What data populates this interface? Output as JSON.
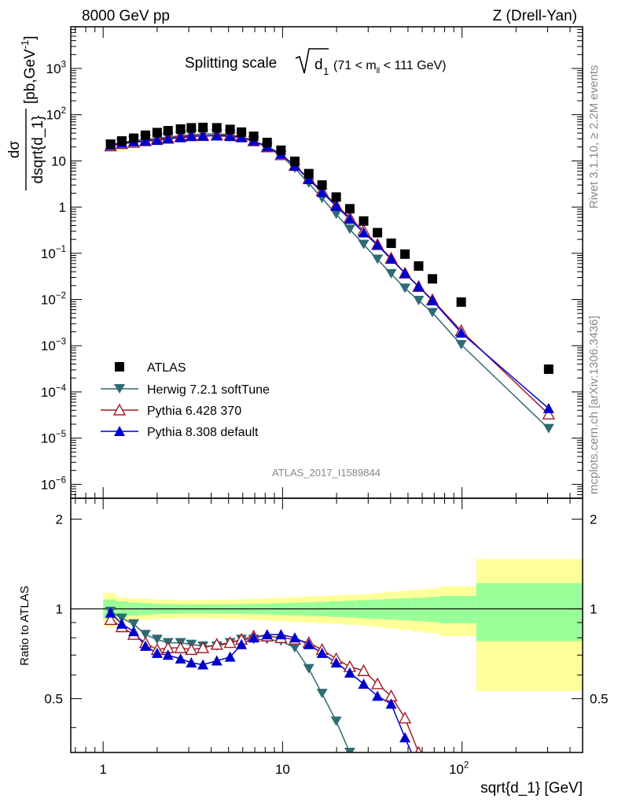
{
  "header": {
    "left": "8000 GeV pp",
    "right": "Z (Drell-Yan)"
  },
  "side_labels": {
    "rivet": "Rivet 3.1.10, ≥ 2.2M events",
    "site": "mcplots.cern.ch [arXiv:1306.3436]"
  },
  "analysis_tag": "ATLAS_2017_I1589844",
  "colors": {
    "atlas": "#000000",
    "herwig": "#2e6b73",
    "pythia6": "#a01c2a",
    "pythia8": "#0000cc",
    "band_inner": "#99ff99",
    "band_outer": "#ffff99"
  },
  "chart_data": [
    {
      "type": "scatter",
      "title_parts": {
        "main": "Splitting scale",
        "symbol": "d",
        "sub": "1",
        "range": "(71 < m",
        "range_sub": "ll",
        "range_end": " < 111 GeV)"
      },
      "ylabel": {
        "frac_top": "dσ",
        "frac_bottom": "dsqrt{d_1}",
        "unit": "[pb,GeV",
        "unit_sup": "-1",
        "unit_end": "]"
      },
      "yscale": "log",
      "ylim": [
        5e-07,
        8000.0
      ],
      "xscale": "log",
      "xlim": [
        0.66,
        470
      ],
      "y_ticks": [
        {
          "v": 1e-06,
          "label": "10",
          "sup": "−6"
        },
        {
          "v": 1e-05,
          "label": "10",
          "sup": "−5"
        },
        {
          "v": 0.0001,
          "label": "10",
          "sup": "−4"
        },
        {
          "v": 0.001,
          "label": "10",
          "sup": "−3"
        },
        {
          "v": 0.01,
          "label": "10",
          "sup": "−2"
        },
        {
          "v": 0.1,
          "label": "10",
          "sup": "−1"
        },
        {
          "v": 1,
          "label": "1",
          "sup": ""
        },
        {
          "v": 10,
          "label": "10",
          "sup": ""
        },
        {
          "v": 100,
          "label": "10",
          "sup": "2"
        },
        {
          "v": 1000,
          "label": "10",
          "sup": "3"
        }
      ],
      "legend": {
        "placement": "lower-left",
        "entries": [
          "ATLAS",
          "Herwig 7.2.1 softTune",
          "Pythia 6.428 370",
          "Pythia 8.308 default"
        ]
      },
      "series": [
        {
          "name": "ATLAS",
          "marker": "square",
          "x": [
            1.1,
            1.27,
            1.48,
            1.72,
            2.0,
            2.3,
            2.7,
            3.1,
            3.6,
            4.3,
            5.1,
            5.9,
            6.9,
            8.2,
            9.8,
            11.7,
            14.0,
            16.6,
            19.9,
            23.7,
            28.3,
            33.8,
            40.3,
            48.1,
            57.3,
            68.4,
            99,
            304
          ],
          "values": [
            23,
            27,
            31,
            36,
            41,
            45,
            49,
            52,
            53,
            52,
            48,
            42,
            34,
            25,
            17,
            9.8,
            5.3,
            3.0,
            1.65,
            0.92,
            0.5,
            0.28,
            0.165,
            0.096,
            0.053,
            0.028,
            0.0088,
            0.00031
          ]
        },
        {
          "name": "Herwig 7.2.1 softTune",
          "marker": "triangle-down",
          "x": [
            1.1,
            1.27,
            1.48,
            1.72,
            2.0,
            2.3,
            2.7,
            3.1,
            3.6,
            4.3,
            5.1,
            5.9,
            6.9,
            8.2,
            9.8,
            11.7,
            14.0,
            16.6,
            19.9,
            23.7,
            28.3,
            33.8,
            40.3,
            48.1,
            57.3,
            68.4,
            99,
            304
          ],
          "values": [
            22.5,
            25.0,
            27.5,
            29.0,
            31.0,
            33.0,
            35.0,
            37.0,
            38.0,
            38.5,
            37.0,
            33.0,
            27.0,
            19.5,
            13.0,
            6.9,
            3.3,
            1.55,
            0.7,
            0.33,
            0.155,
            0.074,
            0.036,
            0.0175,
            0.0095,
            0.0052,
            0.00105,
            1.6e-05
          ]
        },
        {
          "name": "Pythia 6.428 370",
          "marker": "triangle-up-open",
          "x": [
            1.1,
            1.27,
            1.48,
            1.72,
            2.0,
            2.3,
            2.7,
            3.1,
            3.6,
            4.3,
            5.1,
            5.9,
            6.9,
            8.2,
            9.8,
            11.7,
            14.0,
            16.6,
            19.9,
            23.7,
            28.3,
            33.8,
            40.3,
            48.1,
            57.3,
            68.4,
            99,
            304
          ],
          "values": [
            21.0,
            23.5,
            25.0,
            27.0,
            29.5,
            31.0,
            33.5,
            35.0,
            35.0,
            36.0,
            36.0,
            33.5,
            27.0,
            20.0,
            13.5,
            7.9,
            4.1,
            2.25,
            1.1,
            0.59,
            0.31,
            0.155,
            0.078,
            0.037,
            0.019,
            0.0098,
            0.0021,
            3.3e-05
          ]
        },
        {
          "name": "Pythia 8.308 default",
          "marker": "triangle-up",
          "x": [
            1.1,
            1.27,
            1.48,
            1.72,
            2.0,
            2.3,
            2.7,
            3.1,
            3.6,
            4.3,
            5.1,
            5.9,
            6.9,
            8.2,
            9.8,
            11.7,
            14.0,
            16.6,
            19.9,
            23.7,
            28.3,
            33.8,
            40.3,
            48.1,
            57.3,
            68.4,
            99,
            304
          ],
          "values": [
            22.0,
            24.5,
            26.0,
            27.0,
            28.0,
            30.0,
            32.0,
            34.0,
            34.5,
            35.0,
            34.0,
            32.0,
            27.0,
            20.5,
            14.0,
            7.8,
            4.0,
            2.1,
            1.05,
            0.55,
            0.28,
            0.15,
            0.075,
            0.037,
            0.019,
            0.0095,
            0.0019,
            4.4e-05
          ]
        }
      ]
    },
    {
      "type": "scatter",
      "ylabel": "Ratio to ATLAS",
      "xlabel": "sqrt{d_1} [GeV]",
      "xscale": "log",
      "xlim": [
        0.66,
        470
      ],
      "ylim": [
        0.33,
        2.35
      ],
      "y_ticks": [
        "0.5",
        "1",
        "2"
      ],
      "x_ticks": [
        {
          "v": 1,
          "label": "1",
          "sup": ""
        },
        {
          "v": 10,
          "label": "10",
          "sup": ""
        },
        {
          "v": 100,
          "label": "10",
          "sup": "2"
        }
      ],
      "bands": {
        "edges": [
          1,
          1.18,
          1.37,
          1.6,
          1.86,
          2.15,
          2.5,
          2.9,
          3.35,
          3.95,
          4.65,
          5.45,
          6.4,
          7.5,
          8.95,
          10.7,
          12.8,
          15.2,
          18.2,
          21.6,
          25.8,
          30.8,
          36.8,
          44,
          52.5,
          62.6,
          74.5,
          120,
          470
        ],
        "inner": [
          0.075,
          0.06,
          0.05,
          0.045,
          0.04,
          0.038,
          0.036,
          0.035,
          0.035,
          0.036,
          0.037,
          0.038,
          0.04,
          0.042,
          0.045,
          0.048,
          0.052,
          0.056,
          0.06,
          0.065,
          0.07,
          0.075,
          0.08,
          0.085,
          0.09,
          0.095,
          0.105,
          0.22
        ],
        "outer": [
          0.13,
          0.095,
          0.085,
          0.08,
          0.075,
          0.072,
          0.07,
          0.07,
          0.07,
          0.072,
          0.074,
          0.076,
          0.08,
          0.085,
          0.09,
          0.095,
          0.1,
          0.105,
          0.11,
          0.115,
          0.12,
          0.13,
          0.14,
          0.15,
          0.16,
          0.17,
          0.19,
          0.47
        ]
      },
      "series": [
        {
          "name": "Herwig 7.2.1 softTune",
          "x": [
            1.1,
            1.27,
            1.48,
            1.72,
            2.0,
            2.3,
            2.7,
            3.1,
            3.6,
            4.3,
            5.1,
            5.9,
            6.9,
            8.2,
            9.8,
            11.7,
            14.0,
            16.6,
            19.9,
            23.7
          ],
          "values": [
            0.98,
            0.93,
            0.89,
            0.82,
            0.79,
            0.77,
            0.77,
            0.76,
            0.75,
            0.75,
            0.77,
            0.79,
            0.79,
            0.79,
            0.78,
            0.74,
            0.63,
            0.52,
            0.42,
            0.33
          ]
        },
        {
          "name": "Pythia 6.428 370",
          "x": [
            1.1,
            1.27,
            1.48,
            1.72,
            2.0,
            2.3,
            2.7,
            3.1,
            3.6,
            4.3,
            5.1,
            5.9,
            6.9,
            8.2,
            9.8,
            11.7,
            14.0,
            16.6,
            19.9,
            23.7,
            28.3,
            33.8,
            40.3,
            48.1,
            57.3
          ],
          "values": [
            0.92,
            0.87,
            0.82,
            0.77,
            0.73,
            0.74,
            0.74,
            0.73,
            0.74,
            0.76,
            0.77,
            0.79,
            0.81,
            0.81,
            0.8,
            0.79,
            0.77,
            0.73,
            0.68,
            0.64,
            0.62,
            0.56,
            0.51,
            0.43,
            0.33
          ]
        },
        {
          "name": "Pythia 8.308 default",
          "x": [
            1.1,
            1.27,
            1.48,
            1.72,
            2.0,
            2.3,
            2.7,
            3.1,
            3.6,
            4.3,
            5.1,
            5.9,
            6.9,
            8.2,
            9.8,
            11.7,
            14.0,
            16.6,
            19.9,
            23.7,
            28.3,
            33.8,
            40.3,
            48.1,
            57.3
          ],
          "values": [
            0.97,
            0.89,
            0.84,
            0.75,
            0.71,
            0.7,
            0.68,
            0.66,
            0.65,
            0.67,
            0.69,
            0.76,
            0.8,
            0.82,
            0.82,
            0.8,
            0.76,
            0.71,
            0.66,
            0.61,
            0.56,
            0.51,
            0.48,
            0.37,
            0.29
          ]
        }
      ]
    }
  ]
}
